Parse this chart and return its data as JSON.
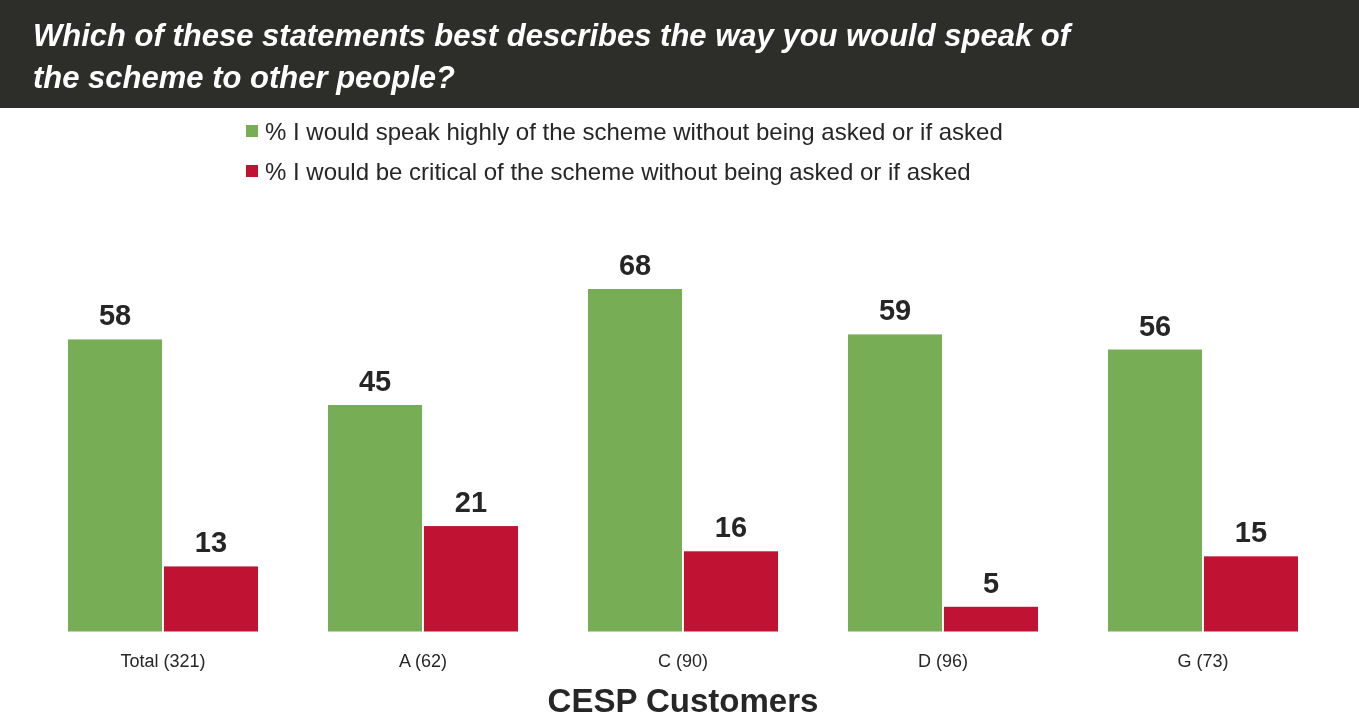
{
  "chart_data": {
    "type": "bar",
    "title": "Which of these statements best describes the way you would speak of the scheme to other people?",
    "xlabel": "CESP Customers",
    "categories": [
      "Total (321)",
      "A (62)",
      "C (90)",
      "D (96)",
      "G (73)"
    ],
    "series": [
      {
        "name": "% I would speak highly of the scheme without being asked or if asked",
        "color": "#76ad55",
        "values": [
          58,
          45,
          68,
          59,
          56
        ]
      },
      {
        "name": "% I would be critical of the scheme without being asked or if asked",
        "color": "#c01334",
        "values": [
          13,
          21,
          16,
          5,
          15
        ]
      }
    ],
    "data_labels": true,
    "legend": "top",
    "grid": false
  }
}
